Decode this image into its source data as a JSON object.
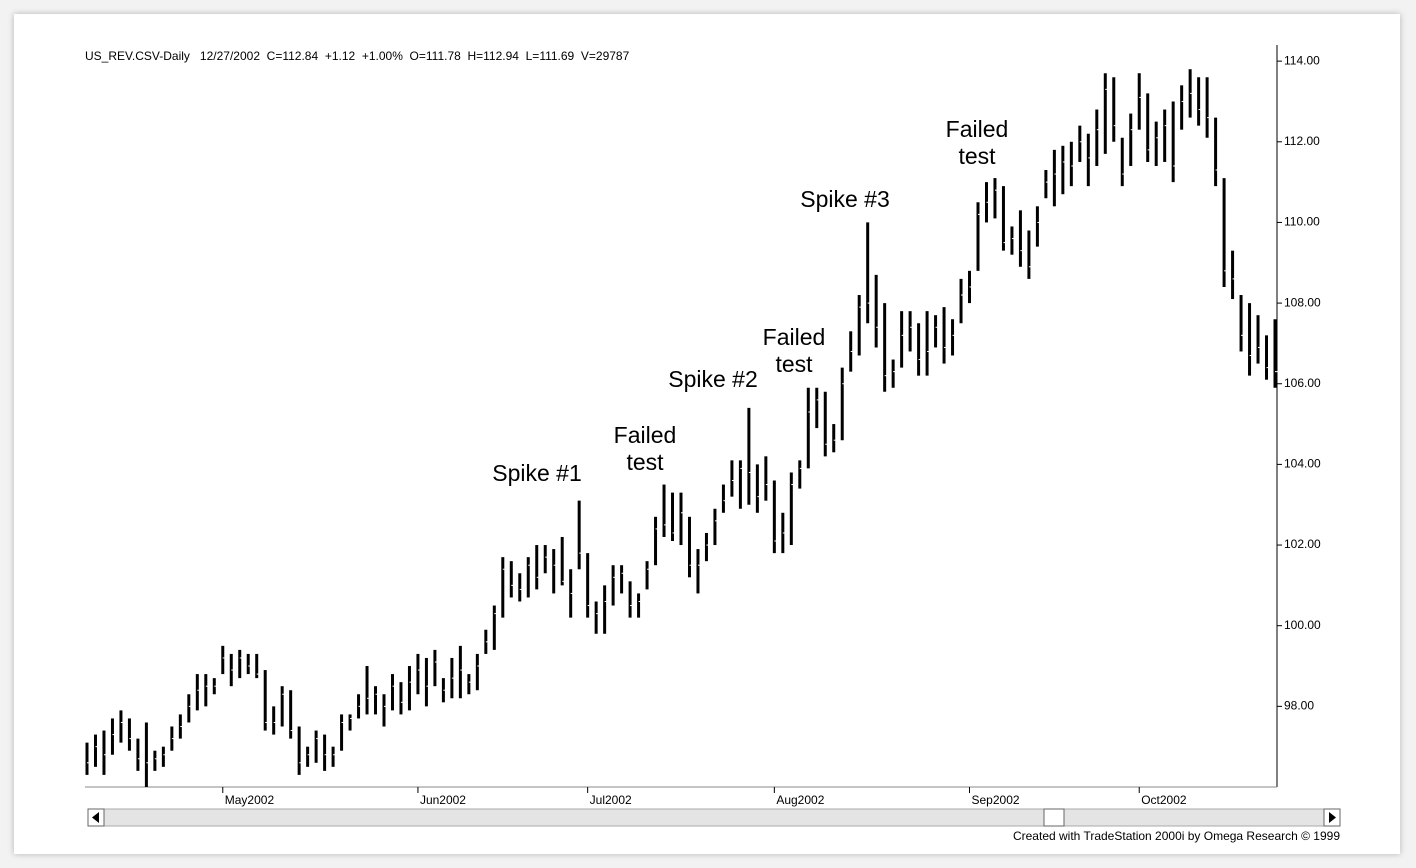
{
  "chart_data": {
    "type": "ohlc",
    "header": "US_REV.CSV-Daily   12/27/2002  C=112.84  +1.12  +1.00%  O=111.78  H=112.94  L=111.69  V=29787",
    "footer": "Created with TradeStation 2000i by Omega Research © 1999",
    "color": "#000000",
    "categories": [
      null,
      null,
      null,
      null,
      null,
      null,
      null,
      null,
      null,
      null,
      null,
      null,
      null,
      null,
      null,
      null,
      "May2002",
      null,
      null,
      null,
      null,
      null,
      null,
      null,
      null,
      null,
      null,
      null,
      null,
      null,
      null,
      null,
      null,
      null,
      null,
      null,
      null,
      null,
      null,
      "Jun2002",
      null,
      null,
      null,
      null,
      null,
      null,
      null,
      null,
      null,
      null,
      null,
      null,
      null,
      null,
      null,
      null,
      null,
      null,
      null,
      "Jul2002",
      null,
      null,
      null,
      null,
      null,
      null,
      null,
      null,
      null,
      null,
      null,
      null,
      null,
      null,
      null,
      null,
      null,
      null,
      null,
      null,
      null,
      "Aug2002",
      null,
      null,
      null,
      null,
      null,
      null,
      null,
      null,
      null,
      null,
      null,
      null,
      null,
      null,
      null,
      null,
      null,
      null,
      null,
      null,
      null,
      null,
      "Sep2002",
      null,
      null,
      null,
      null,
      null,
      null,
      null,
      null,
      null,
      null,
      null,
      null,
      null,
      null,
      null,
      null,
      null,
      null,
      null,
      "Oct2002",
      null,
      null,
      null,
      null,
      null,
      null,
      null,
      null,
      null,
      null,
      null,
      null,
      null,
      null,
      null,
      null
    ],
    "high": [
      97.1,
      97.3,
      97.4,
      97.7,
      97.9,
      97.7,
      97.2,
      97.6,
      96.9,
      97.0,
      97.5,
      97.8,
      98.3,
      98.8,
      98.8,
      98.7,
      99.5,
      99.3,
      99.4,
      99.3,
      99.3,
      98.9,
      98.0,
      98.5,
      98.4,
      97.5,
      97.0,
      97.4,
      97.3,
      97.0,
      97.8,
      97.8,
      98.3,
      99.0,
      98.5,
      98.3,
      98.8,
      98.6,
      99.0,
      99.3,
      99.2,
      99.4,
      98.7,
      99.2,
      99.5,
      98.8,
      99.3,
      99.9,
      100.5,
      101.7,
      101.6,
      101.3,
      101.7,
      102.0,
      102.0,
      101.9,
      102.2,
      101.4,
      103.1,
      101.8,
      100.6,
      101.0,
      101.5,
      101.5,
      101.1,
      100.8,
      101.6,
      102.7,
      103.5,
      103.3,
      103.3,
      102.7,
      101.9,
      102.3,
      102.9,
      103.5,
      104.1,
      104.1,
      105.4,
      104.0,
      104.2,
      103.6,
      102.8,
      103.8,
      104.1,
      105.9,
      105.9,
      105.8,
      105.0,
      106.4,
      107.3,
      108.2,
      110.0,
      108.7,
      108.0,
      106.6,
      107.8,
      107.8,
      107.5,
      107.8,
      107.7,
      107.9,
      107.6,
      108.6,
      108.8,
      110.5,
      111.0,
      111.1,
      110.9,
      109.9,
      110.3,
      109.8,
      110.4,
      111.3,
      111.8,
      111.9,
      112.0,
      112.4,
      112.2,
      112.8,
      113.7,
      113.6,
      112.1,
      112.7,
      113.7,
      113.2,
      112.5,
      112.8,
      113.0,
      113.4,
      113.8,
      113.6,
      113.6,
      112.6,
      111.1,
      109.3,
      108.2,
      108.0,
      107.7,
      107.2,
      107.6
    ],
    "low": [
      96.3,
      96.5,
      96.3,
      96.8,
      97.1,
      96.9,
      96.4,
      96.0,
      96.4,
      96.5,
      96.9,
      97.2,
      97.6,
      97.9,
      98.0,
      98.3,
      98.8,
      98.5,
      98.7,
      98.8,
      98.7,
      97.4,
      97.3,
      97.5,
      97.2,
      96.3,
      96.5,
      96.6,
      96.4,
      96.5,
      96.9,
      97.4,
      97.7,
      97.8,
      97.8,
      97.5,
      97.9,
      97.8,
      97.9,
      98.3,
      98.0,
      98.5,
      98.1,
      98.2,
      98.2,
      98.3,
      98.4,
      99.3,
      99.4,
      100.2,
      100.7,
      100.6,
      100.7,
      100.9,
      101.3,
      100.8,
      101.0,
      100.2,
      101.4,
      100.2,
      99.8,
      99.8,
      100.5,
      100.8,
      100.2,
      100.2,
      100.9,
      101.5,
      102.2,
      102.1,
      102.0,
      101.2,
      100.8,
      101.6,
      102.0,
      102.8,
      103.2,
      102.9,
      103.0,
      102.8,
      103.1,
      101.8,
      101.8,
      102.0,
      103.4,
      103.9,
      104.9,
      104.2,
      104.3,
      104.6,
      106.3,
      106.7,
      107.5,
      106.9,
      105.8,
      105.9,
      106.4,
      106.8,
      106.2,
      106.2,
      106.9,
      106.5,
      106.7,
      107.5,
      108.0,
      108.8,
      110.0,
      110.1,
      109.3,
      109.2,
      108.9,
      108.6,
      109.4,
      110.6,
      110.4,
      110.7,
      110.9,
      111.5,
      110.9,
      111.4,
      111.7,
      112.0,
      110.9,
      111.4,
      112.3,
      111.5,
      111.4,
      111.5,
      111.0,
      112.3,
      112.6,
      112.4,
      112.1,
      110.9,
      108.4,
      108.1,
      106.8,
      106.2,
      106.5,
      106.1,
      105.9
    ],
    "close": [
      96.6,
      97.0,
      96.8,
      97.3,
      97.6,
      97.2,
      96.7,
      96.6,
      96.7,
      96.8,
      97.2,
      97.5,
      98.0,
      98.4,
      98.5,
      98.5,
      99.2,
      98.9,
      99.2,
      99.0,
      98.8,
      97.6,
      97.6,
      98.3,
      97.4,
      96.6,
      96.8,
      97.2,
      96.8,
      96.8,
      97.6,
      97.7,
      98.0,
      98.2,
      98.3,
      98.0,
      98.5,
      98.1,
      98.6,
      98.9,
      98.5,
      99.1,
      98.4,
      98.7,
      98.9,
      98.6,
      99.0,
      99.6,
      100.3,
      101.4,
      101.0,
      100.9,
      101.5,
      101.2,
      101.7,
      101.5,
      101.1,
      100.8,
      101.8,
      100.5,
      100.3,
      100.6,
      101.2,
      101.3,
      100.5,
      100.6,
      101.4,
      102.4,
      102.5,
      102.3,
      102.8,
      101.5,
      101.5,
      102.0,
      102.6,
      103.1,
      103.6,
      103.9,
      103.8,
      103.2,
      103.5,
      102.1,
      102.3,
      103.5,
      103.9,
      105.3,
      105.6,
      104.5,
      104.6,
      106.0,
      106.8,
      107.9,
      108.0,
      107.4,
      106.2,
      106.3,
      107.2,
      107.4,
      106.6,
      106.8,
      107.4,
      106.9,
      107.2,
      108.2,
      108.4,
      110.2,
      110.5,
      110.8,
      109.5,
      109.6,
      109.3,
      108.9,
      110.0,
      111.0,
      111.2,
      111.5,
      111.4,
      112.0,
      111.6,
      112.3,
      113.3,
      112.4,
      111.2,
      112.3,
      113.1,
      111.8,
      112.1,
      112.4,
      111.4,
      113.0,
      113.2,
      112.8,
      112.6,
      111.3,
      108.8,
      108.6,
      107.2,
      106.7,
      106.9,
      106.4,
      106.3
    ],
    "ylim": [
      96.0,
      114.4
    ],
    "yticks": [
      {
        "value": 98,
        "label": "98.00"
      },
      {
        "value": 100,
        "label": "100.00"
      },
      {
        "value": 102,
        "label": "102.00"
      },
      {
        "value": 104,
        "label": "104.00"
      },
      {
        "value": 106,
        "label": "106.00"
      },
      {
        "value": 108,
        "label": "108.00"
      },
      {
        "value": 110,
        "label": "110.00"
      },
      {
        "value": 112,
        "label": "112.00"
      },
      {
        "value": 114,
        "label": "114.00"
      }
    ],
    "annotations": [
      {
        "lines": [
          "Spike #1"
        ]
      },
      {
        "lines": [
          "Failed",
          "test"
        ]
      },
      {
        "lines": [
          "Spike #2"
        ]
      },
      {
        "lines": [
          "Failed",
          "test"
        ]
      },
      {
        "lines": [
          "Spike #3"
        ]
      },
      {
        "lines": [
          "Failed",
          "test"
        ]
      }
    ]
  }
}
